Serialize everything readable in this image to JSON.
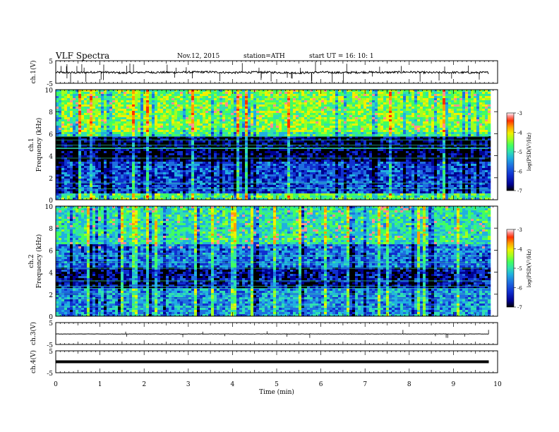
{
  "header": {
    "title": "VLF  Spectra",
    "date": "Nov.12, 2015",
    "station": "station=ATH",
    "start_time": "start  UT  =    16: 10: 1"
  },
  "chart_data": [
    {
      "type": "line",
      "name": "ch1-waveform",
      "ylabel": "ch.1(V)",
      "ylim": [
        -5,
        5
      ],
      "yticks": [
        "5",
        "-5"
      ],
      "x": [
        0,
        0.5,
        1.0,
        1.5,
        2.0,
        2.5,
        3.0,
        3.5,
        4.0,
        4.5,
        5.0,
        5.5,
        6.0,
        6.5,
        7.0,
        7.5,
        8.0,
        8.5,
        9.0,
        9.5,
        9.8
      ],
      "y": [
        -0.2,
        -0.3,
        0.0,
        -0.4,
        -0.1,
        -0.2,
        -0.1,
        0.0,
        -0.3,
        -0.1,
        -0.2,
        -0.4,
        -0.1,
        -0.3,
        -0.1,
        -0.2,
        0.0,
        -0.3,
        -0.2,
        -0.3,
        -0.2
      ]
    },
    {
      "type": "heatmap",
      "name": "ch1-spectrogram",
      "ylabel_channel": "ch.1",
      "ylabel": "Frequency  (kHz)",
      "xlim": [
        0,
        9.8
      ],
      "ylim": [
        0,
        10
      ],
      "yticks": [
        "0",
        "2",
        "4",
        "6",
        "8",
        "10"
      ],
      "approx_log_psd_by_frequency_band": [
        {
          "band_khz": [
            0,
            0.5
          ],
          "value": -5.0
        },
        {
          "band_khz": [
            0.5,
            3.5
          ],
          "value": -6.2
        },
        {
          "band_khz": [
            3.5,
            5.8
          ],
          "value": -6.8
        },
        {
          "band_khz": [
            5.8,
            6.2
          ],
          "value": -5.2
        },
        {
          "band_khz": [
            6.2,
            10
          ],
          "value": -4.8
        }
      ]
    },
    {
      "type": "heatmap",
      "name": "ch2-spectrogram",
      "ylabel_channel": "ch.2",
      "ylabel": "Frequency  (kHz)",
      "xlim": [
        0,
        9.8
      ],
      "ylim": [
        0,
        10
      ],
      "yticks": [
        "0",
        "2",
        "4",
        "6",
        "8",
        "10"
      ],
      "approx_log_psd_by_frequency_band": [
        {
          "band_khz": [
            0,
            2.5
          ],
          "value": -5.8
        },
        {
          "band_khz": [
            2.5,
            4.5
          ],
          "value": -6.6
        },
        {
          "band_khz": [
            4.5,
            6.5
          ],
          "value": -6.0
        },
        {
          "band_khz": [
            6.5,
            10
          ],
          "value": -5.3
        }
      ]
    },
    {
      "type": "line",
      "name": "ch3-waveform",
      "ylabel": "ch.3(V)",
      "ylim": [
        -5,
        5
      ],
      "yticks": [
        "5",
        "-5"
      ],
      "x": [
        0,
        9.8
      ],
      "y": [
        -0.2,
        -0.2
      ]
    },
    {
      "type": "line",
      "name": "ch4-waveform",
      "ylabel": "ch.4(V)",
      "ylim": [
        -5,
        5
      ],
      "yticks": [
        "5",
        "-5"
      ],
      "x": [
        0,
        9.8
      ],
      "y": [
        0,
        0
      ]
    }
  ],
  "x_axis": {
    "label": "Time  (min)",
    "xlim": [
      0,
      10
    ],
    "ticks": [
      "0",
      "1",
      "2",
      "3",
      "4",
      "5",
      "6",
      "7",
      "8",
      "9",
      "10"
    ]
  },
  "colorbar": {
    "label": "log(PSD(V²/Hz)",
    "range": [
      -7,
      -3
    ],
    "ticks": [
      "-3",
      "-4",
      "-5",
      "-6",
      "-7"
    ]
  },
  "colors": {
    "background": "#ffffff",
    "axis": "#000000",
    "colormap": [
      "#000000",
      "#000090",
      "#1030d0",
      "#1f6fe0",
      "#20b0e0",
      "#30e0b0",
      "#40ff60",
      "#a0ff20",
      "#f0f000",
      "#ffa000",
      "#ff3000",
      "#ff9090",
      "#ffffff"
    ]
  }
}
